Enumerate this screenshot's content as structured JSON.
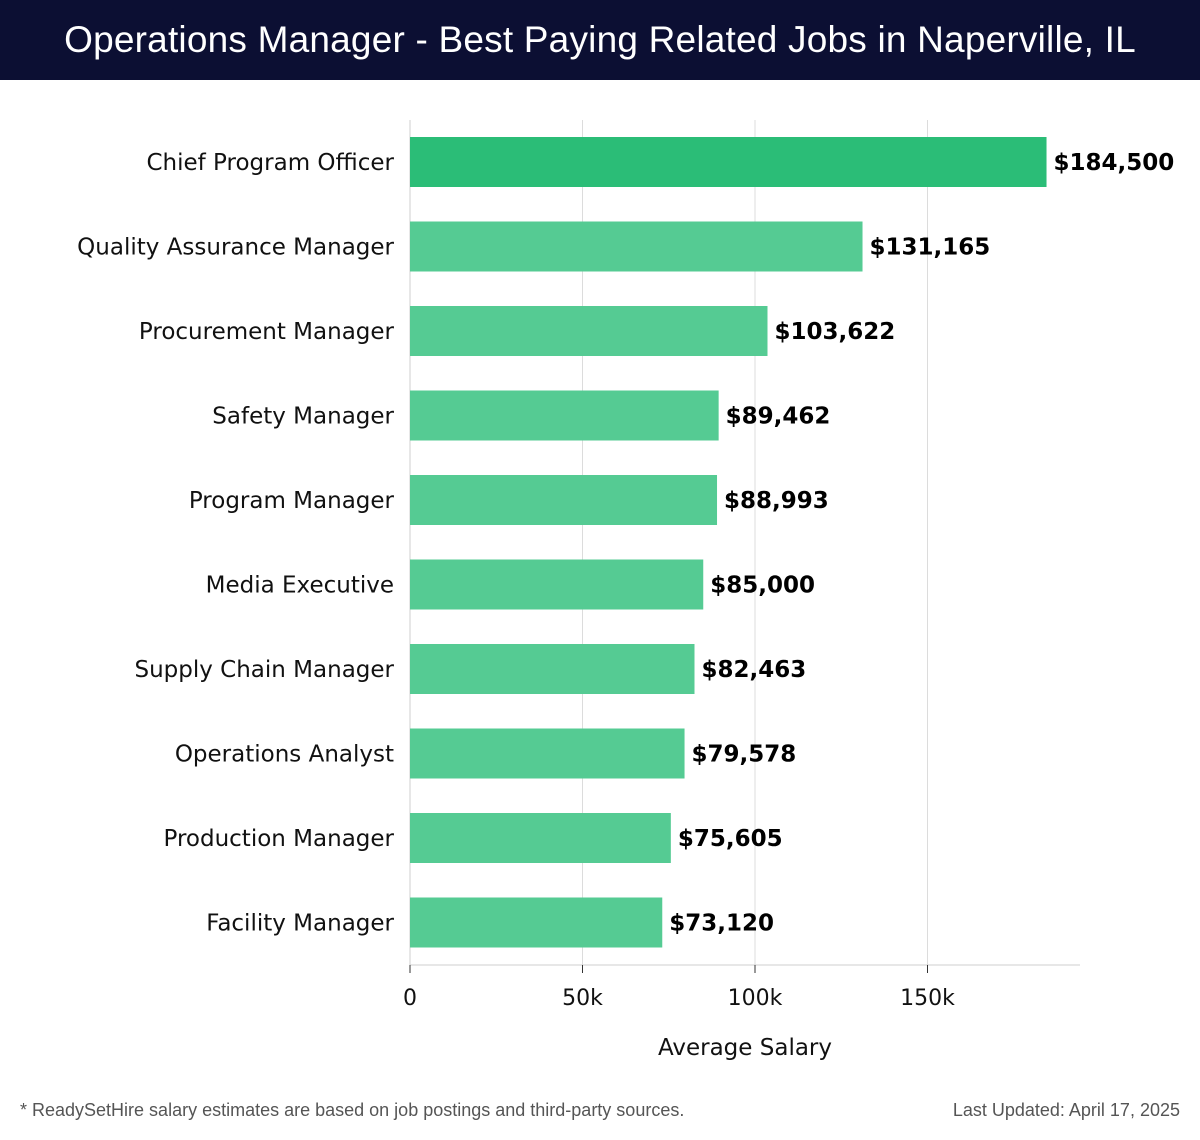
{
  "header": {
    "title": "Operations Manager - Best Paying Related Jobs in Naperville, IL"
  },
  "chart_data": {
    "type": "bar",
    "orientation": "horizontal",
    "title": "Operations Manager - Best Paying Related Jobs in Naperville, IL",
    "xlabel": "Average Salary",
    "ylabel": "",
    "categories": [
      "Chief Program Officer",
      "Quality Assurance Manager",
      "Procurement Manager",
      "Safety Manager",
      "Program Manager",
      "Media Executive",
      "Supply Chain Manager",
      "Operations Analyst",
      "Production Manager",
      "Facility Manager"
    ],
    "values": [
      184500,
      131165,
      103622,
      89462,
      88993,
      85000,
      82463,
      79578,
      75605,
      73120
    ],
    "value_labels": [
      "$184,500",
      "$131,165",
      "$103,622",
      "$89,462",
      "$88,993",
      "$85,000",
      "$82,463",
      "$79,578",
      "$75,605",
      "$73,120"
    ],
    "xlim": [
      0,
      195000
    ],
    "x_ticks": [
      0,
      50000,
      100000,
      150000
    ],
    "x_tick_labels": [
      "0",
      "50k",
      "100k",
      "150k"
    ],
    "grid": true,
    "colors": {
      "top_bar": "#2bbd77",
      "bar": "#55cb93"
    }
  },
  "footer": {
    "note": "* ReadySetHire salary estimates are based on job postings and third-party sources.",
    "updated": "Last Updated: April 17, 2025"
  }
}
